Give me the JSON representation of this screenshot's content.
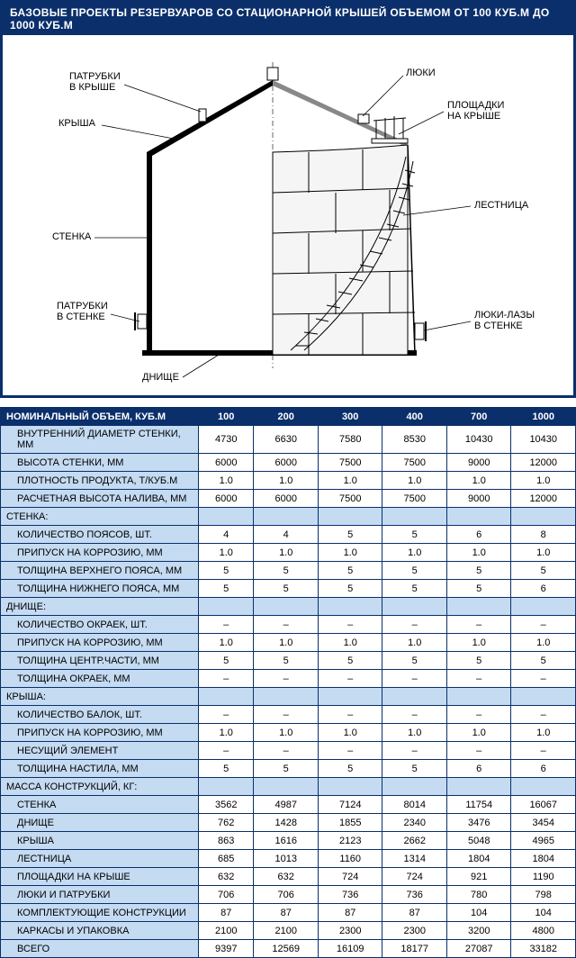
{
  "title": "БАЗОВЫЕ ПРОЕКТЫ РЕЗЕРВУАРОВ СО СТАЦИОНАРНОЙ КРЫШЕЙ ОБЪЕМОМ ОТ 100 КУБ.М  ДО 1000 КУБ.М",
  "diagram": {
    "labels": {
      "roof_nozzles": "ПАТРУБКИ\nВ КРЫШЕ",
      "roof": "КРЫША",
      "wall": "СТЕНКА",
      "wall_nozzles": "ПАТРУБКИ\nВ СТЕНКЕ",
      "bottom": "ДНИЩЕ",
      "hatches": "ЛЮКИ",
      "roof_platforms": "ПЛОЩАДКИ\nНА КРЫШЕ",
      "stairs": "ЛЕСТНИЦА",
      "manholes": "ЛЮКИ-ЛАЗЫ\nВ СТЕНКЕ"
    },
    "colors": {
      "stroke": "#000000",
      "fill_light": "#ffffff",
      "fill_shadow": "#d9d9d9"
    }
  },
  "table": {
    "header_label": "НОМИНАЛЬНЫЙ ОБЪЕМ, КУБ.М",
    "columns": [
      "100",
      "200",
      "300",
      "400",
      "700",
      "1000"
    ],
    "rows": [
      {
        "label": "ВНУТРЕННИЙ ДИАМЕТР СТЕНКИ, ММ",
        "indent": true,
        "vals": [
          "4730",
          "6630",
          "7580",
          "8530",
          "10430",
          "10430"
        ]
      },
      {
        "label": "ВЫСОТА СТЕНКИ, ММ",
        "indent": true,
        "vals": [
          "6000",
          "6000",
          "7500",
          "7500",
          "9000",
          "12000"
        ]
      },
      {
        "label": "ПЛОТНОСТЬ ПРОДУКТА, Т/КУБ.М",
        "indent": true,
        "vals": [
          "1.0",
          "1.0",
          "1.0",
          "1.0",
          "1.0",
          "1.0"
        ]
      },
      {
        "label": "РАСЧЕТНАЯ ВЫСОТА НАЛИВА, ММ",
        "indent": true,
        "vals": [
          "6000",
          "6000",
          "7500",
          "7500",
          "9000",
          "12000"
        ]
      },
      {
        "label": "СТЕНКА:",
        "section": true
      },
      {
        "label": "КОЛИЧЕСТВО ПОЯСОВ, ШТ.",
        "indent": true,
        "vals": [
          "4",
          "4",
          "5",
          "5",
          "6",
          "8"
        ]
      },
      {
        "label": "ПРИПУСК НА КОРРОЗИЮ, ММ",
        "indent": true,
        "vals": [
          "1.0",
          "1.0",
          "1.0",
          "1.0",
          "1.0",
          "1.0"
        ]
      },
      {
        "label": "ТОЛЩИНА ВЕРХНЕГО ПОЯСА, ММ",
        "indent": true,
        "vals": [
          "5",
          "5",
          "5",
          "5",
          "5",
          "5"
        ]
      },
      {
        "label": "ТОЛЩИНА НИЖНЕГО ПОЯСА, ММ",
        "indent": true,
        "vals": [
          "5",
          "5",
          "5",
          "5",
          "5",
          "6"
        ]
      },
      {
        "label": "ДНИЩЕ:",
        "section": true
      },
      {
        "label": "КОЛИЧЕСТВО ОКРАЕК, ШТ.",
        "indent": true,
        "vals": [
          "–",
          "–",
          "–",
          "–",
          "–",
          "–"
        ]
      },
      {
        "label": "ПРИПУСК НА КОРРОЗИЮ, ММ",
        "indent": true,
        "vals": [
          "1.0",
          "1.0",
          "1.0",
          "1.0",
          "1.0",
          "1.0"
        ]
      },
      {
        "label": "ТОЛЩИНА ЦЕНТР.ЧАСТИ, ММ",
        "indent": true,
        "vals": [
          "5",
          "5",
          "5",
          "5",
          "5",
          "5"
        ]
      },
      {
        "label": "ТОЛЩИНА ОКРАЕК, ММ",
        "indent": true,
        "vals": [
          "–",
          "–",
          "–",
          "–",
          "–",
          "–"
        ]
      },
      {
        "label": "КРЫША:",
        "section": true
      },
      {
        "label": "КОЛИЧЕСТВО БАЛОК, ШТ.",
        "indent": true,
        "vals": [
          "–",
          "–",
          "–",
          "–",
          "–",
          "–"
        ]
      },
      {
        "label": "ПРИПУСК НА КОРРОЗИЮ, ММ",
        "indent": true,
        "vals": [
          "1.0",
          "1.0",
          "1.0",
          "1.0",
          "1.0",
          "1.0"
        ]
      },
      {
        "label": "НЕСУЩИЙ ЭЛЕМЕНТ",
        "indent": true,
        "vals": [
          "–",
          "–",
          "–",
          "–",
          "–",
          "–"
        ]
      },
      {
        "label": "ТОЛЩИНА НАСТИЛА, ММ",
        "indent": true,
        "vals": [
          "5",
          "5",
          "5",
          "5",
          "6",
          "6"
        ]
      },
      {
        "label": "МАССА КОНСТРУКЦИЙ, КГ:",
        "section": true
      },
      {
        "label": "СТЕНКА",
        "indent": true,
        "vals": [
          "3562",
          "4987",
          "7124",
          "8014",
          "11754",
          "16067"
        ]
      },
      {
        "label": "ДНИЩЕ",
        "indent": true,
        "vals": [
          "762",
          "1428",
          "1855",
          "2340",
          "3476",
          "3454"
        ]
      },
      {
        "label": "КРЫША",
        "indent": true,
        "vals": [
          "863",
          "1616",
          "2123",
          "2662",
          "5048",
          "4965"
        ]
      },
      {
        "label": "ЛЕСТНИЦА",
        "indent": true,
        "vals": [
          "685",
          "1013",
          "1160",
          "1314",
          "1804",
          "1804"
        ]
      },
      {
        "label": "ПЛОЩАДКИ НА КРЫШЕ",
        "indent": true,
        "vals": [
          "632",
          "632",
          "724",
          "724",
          "921",
          "1190"
        ]
      },
      {
        "label": "ЛЮКИ И ПАТРУБКИ",
        "indent": true,
        "vals": [
          "706",
          "706",
          "736",
          "736",
          "780",
          "798"
        ]
      },
      {
        "label": "КОМПЛЕКТУЮЩИЕ КОНСТРУКЦИИ",
        "indent": true,
        "vals": [
          "87",
          "87",
          "87",
          "87",
          "104",
          "104"
        ]
      },
      {
        "label": "КАРКАСЫ И УПАКОВКА",
        "indent": true,
        "vals": [
          "2100",
          "2100",
          "2300",
          "2300",
          "3200",
          "4800"
        ]
      },
      {
        "label": "ВСЕГО",
        "indent": true,
        "vals": [
          "9397",
          "12569",
          "16109",
          "18177",
          "27087",
          "33182"
        ]
      }
    ]
  }
}
